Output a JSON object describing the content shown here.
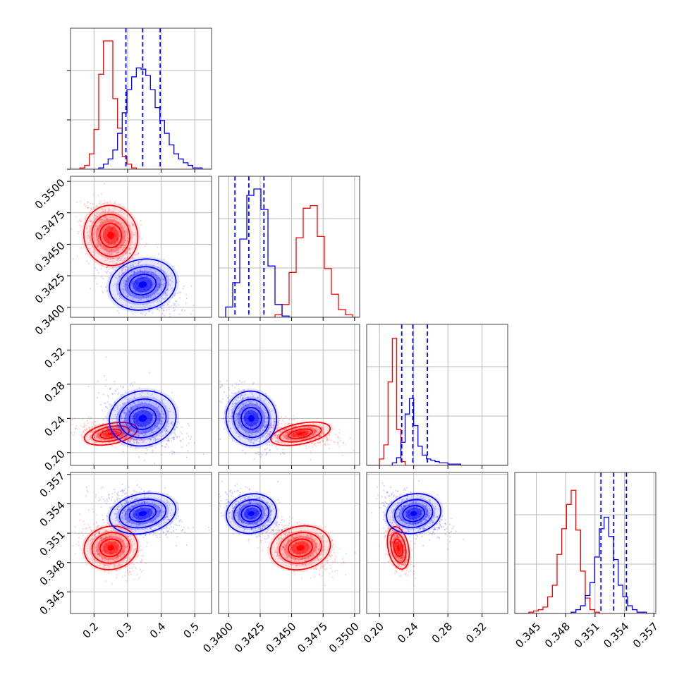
{
  "colors": {
    "series_red": "#ff0000",
    "series_blue": "#0000ff",
    "grid": "#b9b9b9"
  },
  "chart_data": {
    "type": "corner",
    "grid": true,
    "series": [
      {
        "color": "#ff0000",
        "mean": [
          0.25,
          0.3457,
          0.222,
          0.3495
        ],
        "std": [
          0.04,
          0.0012,
          0.006,
          0.0011
        ]
      },
      {
        "color": "#0000ff",
        "mean": [
          0.345,
          0.3418,
          0.24,
          0.353
        ],
        "std": [
          0.05,
          0.001,
          0.016,
          0.001
        ]
      }
    ],
    "quantiles_series": "#0000ff",
    "quantile_lines": [
      [
        0.295,
        0.345,
        0.397
      ],
      [
        0.3405,
        0.3416,
        0.3428
      ],
      [
        0.226,
        0.239,
        0.256
      ],
      [
        0.3516,
        0.3529,
        0.3542
      ]
    ],
    "params": [
      {
        "range": [
          0.13,
          0.55
        ],
        "ticks": [
          "0.2",
          "0.3",
          "0.4",
          "0.5"
        ]
      },
      {
        "range": [
          0.3392,
          0.3504
        ],
        "ticks": [
          "0.3400",
          "0.3425",
          "0.3450",
          "0.3475",
          "0.3500"
        ]
      },
      {
        "range": [
          0.185,
          0.35
        ],
        "ticks": [
          "0.20",
          "0.24",
          "0.28",
          "0.32"
        ]
      },
      {
        "range": [
          0.3428,
          0.3572
        ],
        "ticks": [
          "0.345",
          "0.348",
          "0.351",
          "0.354",
          "0.357"
        ]
      }
    ],
    "diagonal_histograms": [
      {
        "bins": [
          0.13,
          0.144,
          0.158,
          0.172,
          0.186,
          0.2,
          0.214,
          0.228,
          0.242,
          0.256,
          0.27,
          0.284,
          0.298,
          0.312,
          0.326,
          0.34,
          0.354,
          0.368,
          0.382,
          0.396,
          0.41,
          0.424,
          0.438,
          0.452,
          0.466,
          0.48,
          0.494,
          0.508,
          0.522,
          0.536,
          0.55
        ],
        "red": [
          0,
          0,
          0.01,
          0.03,
          0.12,
          0.31,
          0.74,
          1.0,
          1.0,
          0.55,
          0.32,
          0.1,
          0.04,
          0.01,
          0,
          0,
          0,
          0,
          0,
          0,
          0,
          0,
          0,
          0,
          0,
          0,
          0,
          0,
          0,
          0
        ],
        "blue": [
          0,
          0,
          0,
          0,
          0,
          0,
          0.01,
          0.04,
          0.08,
          0.15,
          0.28,
          0.44,
          0.62,
          0.72,
          0.79,
          0.78,
          0.73,
          0.62,
          0.48,
          0.38,
          0.28,
          0.19,
          0.12,
          0.08,
          0.05,
          0.03,
          0.01,
          0.01,
          0,
          0
        ]
      },
      {
        "bins": [
          0.3392,
          0.33976,
          0.34032,
          0.34088,
          0.34144,
          0.342,
          0.34256,
          0.34312,
          0.34368,
          0.34424,
          0.3448,
          0.34536,
          0.34592,
          0.34648,
          0.34704,
          0.3476,
          0.34816,
          0.34872,
          0.34928,
          0.34984,
          0.3504
        ],
        "red": [
          0,
          0,
          0,
          0,
          0,
          0,
          0,
          0,
          0.02,
          0.1,
          0.35,
          0.62,
          0.85,
          0.87,
          0.63,
          0.38,
          0.18,
          0.06,
          0.02,
          0
        ],
        "blue": [
          0,
          0.08,
          0.27,
          0.61,
          0.95,
          1.0,
          0.84,
          0.4,
          0.1,
          0.01,
          0,
          0,
          0,
          0,
          0,
          0,
          0,
          0,
          0,
          0
        ]
      },
      {
        "bins": [
          0.185,
          0.19,
          0.195,
          0.2,
          0.205,
          0.21,
          0.215,
          0.22,
          0.225,
          0.23,
          0.235,
          0.24,
          0.245,
          0.25,
          0.255,
          0.26,
          0.265,
          0.27,
          0.275,
          0.28,
          0.285,
          0.29,
          0.295,
          0.3,
          0.305,
          0.31,
          0.315,
          0.32,
          0.325,
          0.33,
          0.335,
          0.34,
          0.345,
          0.35
        ],
        "red": [
          0,
          0,
          0,
          0.05,
          0.16,
          0.65,
          0.99,
          0.28,
          0.03,
          0,
          0,
          0,
          0,
          0,
          0,
          0,
          0,
          0,
          0,
          0,
          0,
          0,
          0,
          0,
          0,
          0,
          0,
          0,
          0,
          0,
          0,
          0,
          0
        ],
        "blue": [
          0,
          0,
          0,
          0,
          0,
          0,
          0.02,
          0.06,
          0.18,
          0.4,
          0.52,
          0.31,
          0.15,
          0.08,
          0.05,
          0.04,
          0.03,
          0.02,
          0.02,
          0.01,
          0.01,
          0.01,
          0,
          0,
          0,
          0,
          0,
          0,
          0,
          0,
          0,
          0,
          0
        ]
      },
      {
        "bins": [
          0.3428,
          0.34328,
          0.34376,
          0.34424,
          0.34472,
          0.3452,
          0.34568,
          0.34616,
          0.34664,
          0.34712,
          0.3476,
          0.34808,
          0.34856,
          0.34904,
          0.34952,
          0.35,
          0.35048,
          0.35096,
          0.35144,
          0.35192,
          0.3524,
          0.35288,
          0.35336,
          0.35384,
          0.35432,
          0.3548,
          0.35528,
          0.35576,
          0.35624,
          0.35672,
          0.3572
        ],
        "red": [
          0,
          0,
          0,
          0.01,
          0.02,
          0.03,
          0.05,
          0.13,
          0.22,
          0.46,
          0.66,
          0.85,
          0.96,
          0.65,
          0.33,
          0.12,
          0.03,
          0.01,
          0,
          0,
          0,
          0,
          0,
          0,
          0,
          0,
          0,
          0,
          0,
          0
        ],
        "blue": [
          0,
          0,
          0,
          0,
          0,
          0,
          0,
          0,
          0,
          0,
          0,
          0,
          0.01,
          0.03,
          0.06,
          0.14,
          0.24,
          0.44,
          0.66,
          0.75,
          0.6,
          0.42,
          0.22,
          0.13,
          0.06,
          0.03,
          0.01,
          0.01,
          0,
          0
        ]
      }
    ]
  }
}
